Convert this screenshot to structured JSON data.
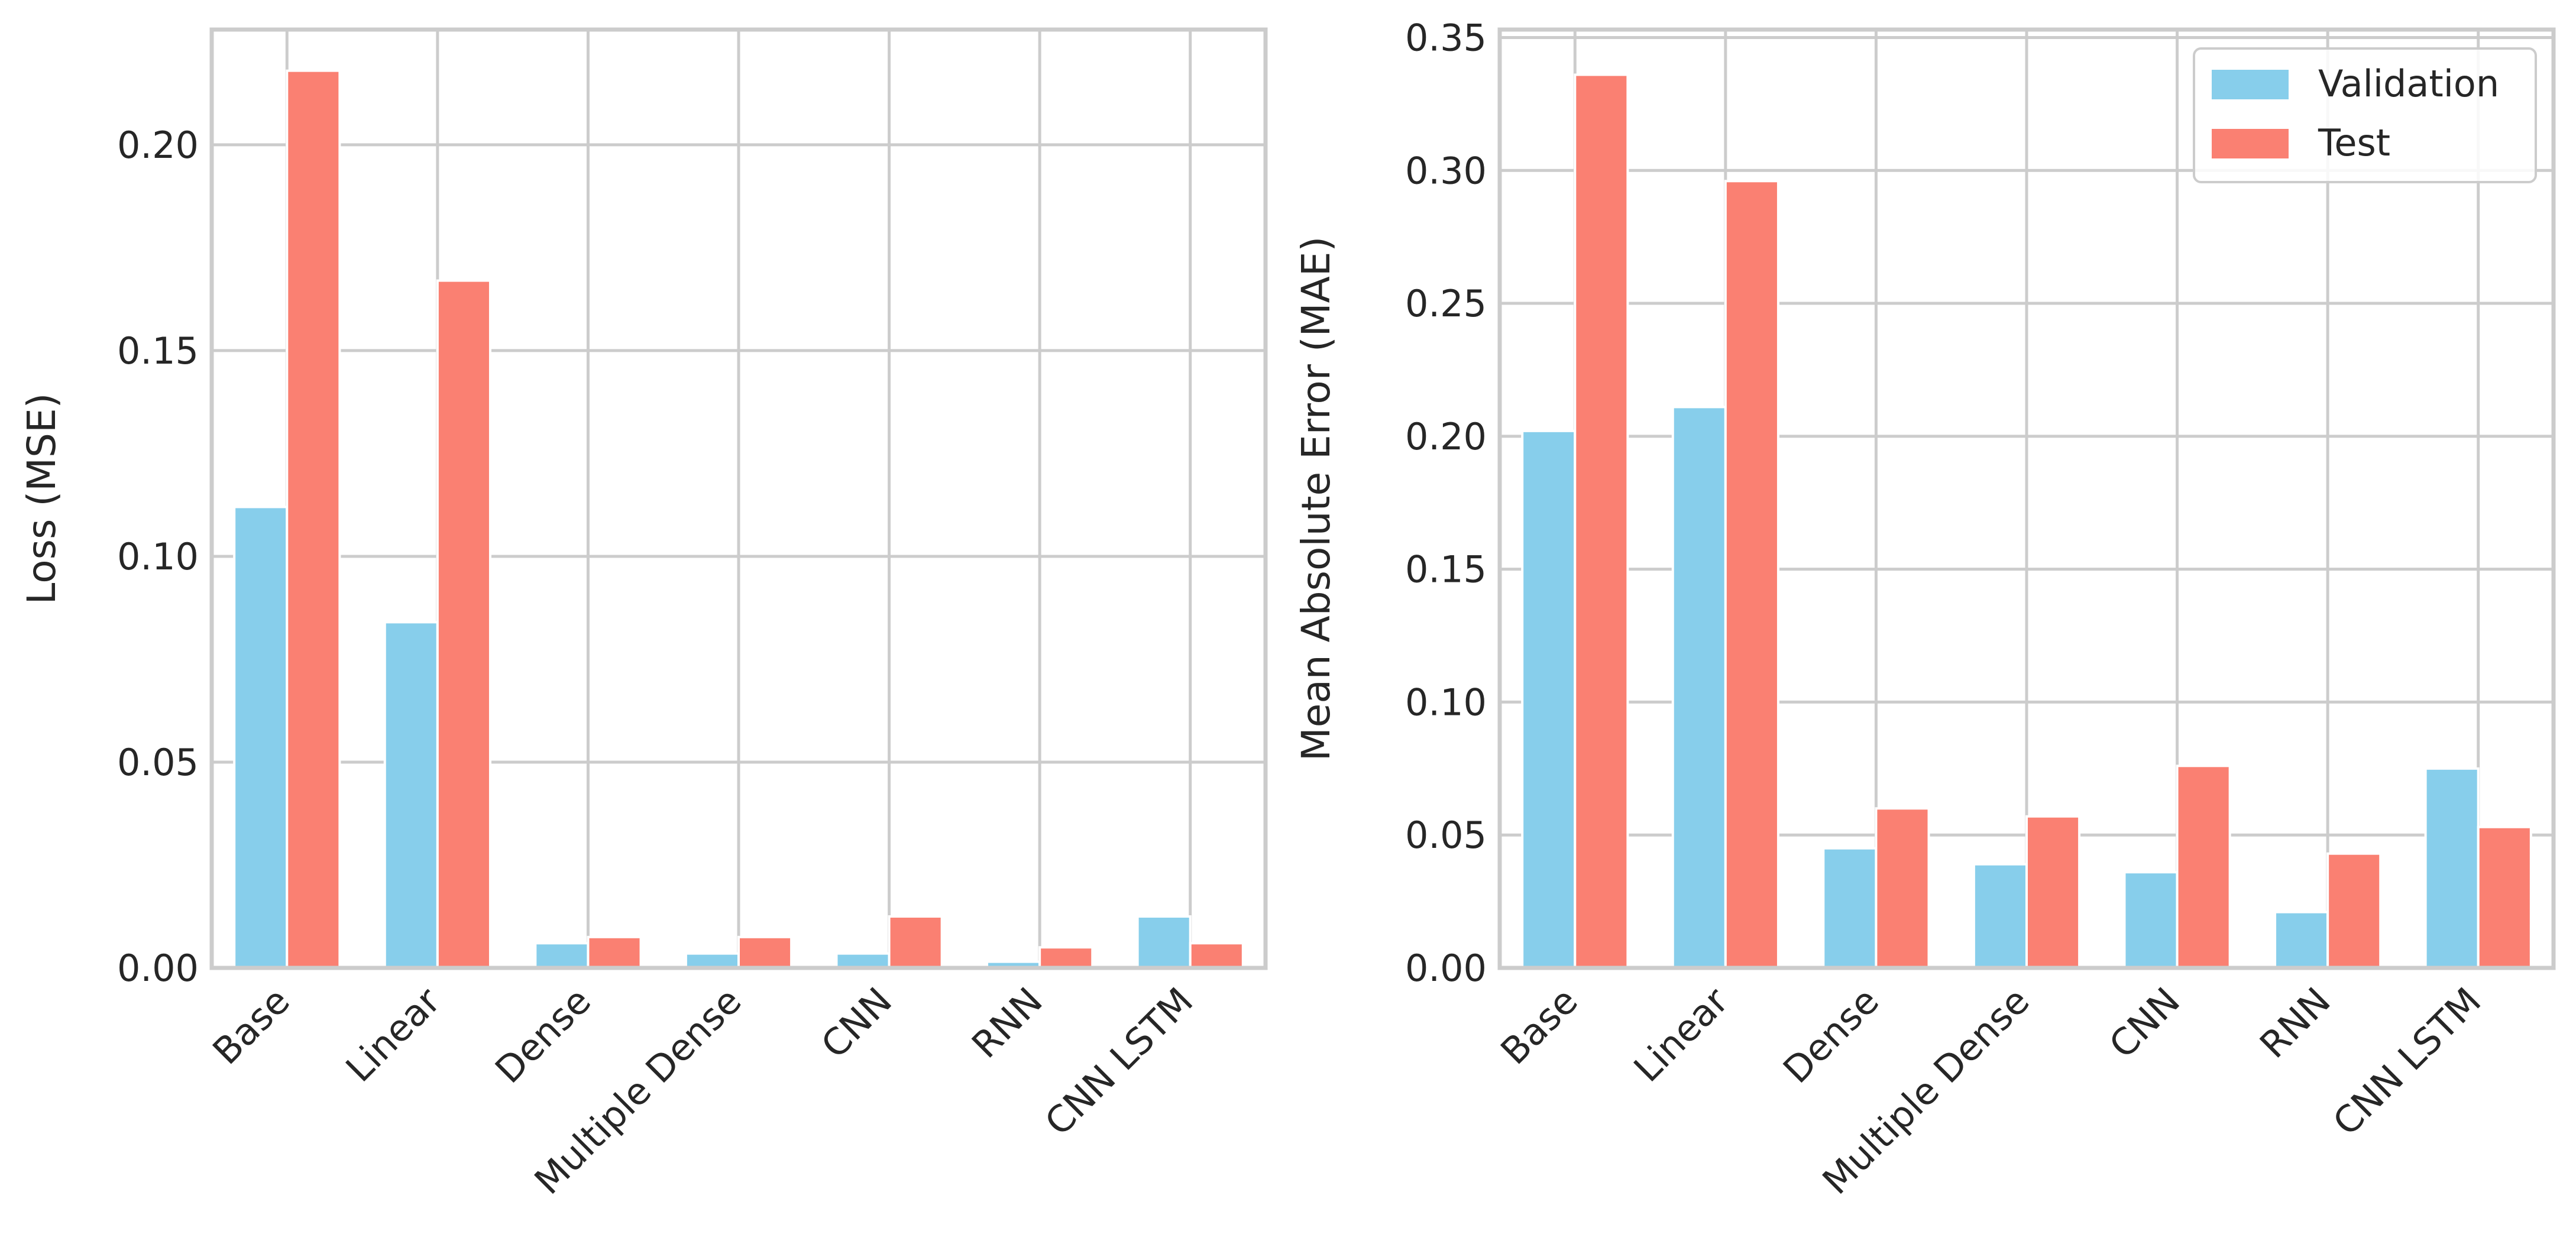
{
  "colors": {
    "validation": "#87CEEB",
    "test": "#FA8072"
  },
  "legend": {
    "placement": "top-right",
    "items": [
      "Validation",
      "Test"
    ]
  },
  "chart_data": [
    {
      "type": "bar",
      "categories": [
        "Base",
        "Linear",
        "Dense",
        "Multiple Dense",
        "CNN",
        "RNN",
        "CNN LSTM"
      ],
      "series": [
        {
          "name": "Validation",
          "values": [
            0.112,
            0.084,
            0.006,
            0.0035,
            0.0035,
            0.0015,
            0.0125
          ]
        },
        {
          "name": "Test",
          "values": [
            0.218,
            0.167,
            0.0075,
            0.0075,
            0.0125,
            0.005,
            0.006
          ]
        }
      ],
      "xlabel": "",
      "ylabel": "Loss (MSE)",
      "ylim": [
        0,
        0.228
      ],
      "yticks": [
        0.0,
        0.05,
        0.1,
        0.15,
        0.2
      ],
      "ytick_labels": [
        "0.00",
        "0.05",
        "0.10",
        "0.15",
        "0.20"
      ],
      "grid": true
    },
    {
      "type": "bar",
      "categories": [
        "Base",
        "Linear",
        "Dense",
        "Multiple Dense",
        "CNN",
        "RNN",
        "CNN LSTM"
      ],
      "series": [
        {
          "name": "Validation",
          "values": [
            0.202,
            0.211,
            0.045,
            0.039,
            0.036,
            0.021,
            0.075
          ]
        },
        {
          "name": "Test",
          "values": [
            0.336,
            0.296,
            0.06,
            0.057,
            0.076,
            0.043,
            0.053
          ]
        }
      ],
      "xlabel": "",
      "ylabel": "Mean Absolute Error (MAE)",
      "ylim": [
        0,
        0.353
      ],
      "yticks": [
        0.0,
        0.05,
        0.1,
        0.15,
        0.2,
        0.25,
        0.3,
        0.35
      ],
      "ytick_labels": [
        "0.00",
        "0.05",
        "0.10",
        "0.15",
        "0.20",
        "0.25",
        "0.30",
        "0.35"
      ],
      "grid": true,
      "legend": "top-right"
    }
  ]
}
